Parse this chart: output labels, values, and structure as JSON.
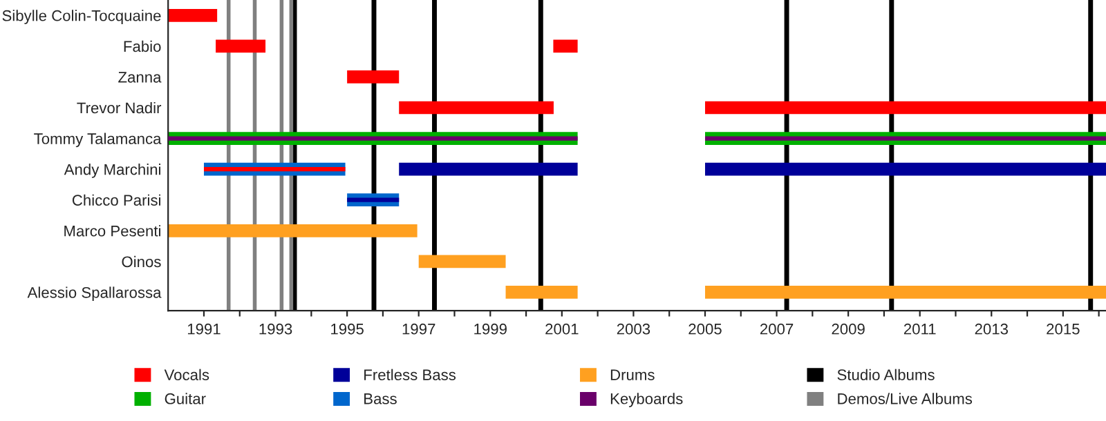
{
  "chart_data": {
    "type": "bar",
    "orientation": "horizontal",
    "legend": "bottom",
    "grid": false,
    "categories": [
      "Sibylle Colin-Tocquaine",
      "Fabio",
      "Zanna",
      "Trevor Nadir",
      "Tommy Talamanca",
      "Andy Marchini",
      "Chicco Parisi",
      "Marco Pesenti",
      "Oinos",
      "Alessio Spallarossa"
    ],
    "xlim": [
      1990,
      2016.2
    ],
    "xticks": [
      1991,
      {
        "value": 1992,
        "label": null
      },
      1993,
      {
        "value": 1994,
        "label": null
      },
      1995,
      {
        "value": 1996,
        "label": null
      },
      1997,
      {
        "value": 1998,
        "label": null
      },
      1999,
      {
        "value": 2000,
        "label": null
      },
      2001,
      {
        "value": 2002,
        "label": null
      },
      2003,
      {
        "value": 2004,
        "label": null
      },
      2005,
      {
        "value": 2006,
        "label": null
      },
      2007,
      {
        "value": 2008,
        "label": null
      },
      2009,
      {
        "value": 2010,
        "label": null
      },
      2011,
      {
        "value": 2012,
        "label": null
      },
      2013,
      {
        "value": 2014,
        "label": null
      },
      2015,
      {
        "value": 2016,
        "label": null
      }
    ],
    "series": [
      {
        "name": "Vocals",
        "color": "#ff0000",
        "base": [
          1990,
          1991.33,
          1995,
          1996.45,
          null,
          null,
          null,
          null,
          null,
          null
        ],
        "values": [
          1.37,
          1.39,
          1.45,
          4.32,
          null,
          null,
          null,
          null,
          null,
          null
        ]
      },
      {
        "color": "#ff0000",
        "base": [
          null,
          2000.76,
          null,
          2005,
          null,
          null,
          null,
          null,
          null,
          null
        ],
        "values": [
          null,
          0.68,
          null,
          11.2,
          null,
          null,
          null,
          null,
          null,
          null
        ]
      },
      {
        "name": "Guitar",
        "color": "#00b000",
        "base": [
          null,
          null,
          null,
          null,
          1990,
          null,
          null,
          null,
          null,
          null
        ],
        "values": [
          null,
          null,
          null,
          null,
          11.44,
          null,
          null,
          null,
          null,
          null
        ]
      },
      {
        "color": "#00b000",
        "base": [
          null,
          null,
          null,
          null,
          2005,
          null,
          null,
          null,
          null,
          null
        ],
        "values": [
          null,
          null,
          null,
          null,
          11.2,
          null,
          null,
          null,
          null,
          null
        ]
      },
      {
        "name": "Fretless Bass",
        "color": "#000099",
        "base": [
          null,
          null,
          null,
          null,
          null,
          1996.45,
          null,
          null,
          null,
          null
        ],
        "values": [
          null,
          null,
          null,
          null,
          null,
          4.99,
          null,
          null,
          null,
          null
        ]
      },
      {
        "color": "#000099",
        "base": [
          null,
          null,
          null,
          null,
          null,
          2005,
          null,
          null,
          null,
          null
        ],
        "values": [
          null,
          null,
          null,
          null,
          null,
          11.2,
          null,
          null,
          null,
          null
        ]
      },
      {
        "name": "Bass",
        "color": "#0066cc",
        "base": [
          null,
          null,
          null,
          null,
          null,
          1991,
          1995,
          null,
          null,
          null
        ],
        "values": [
          null,
          null,
          null,
          null,
          null,
          3.95,
          1.45,
          null,
          null,
          null
        ]
      },
      {
        "color": "#ff0000",
        "base": [
          null,
          null,
          null,
          null,
          null,
          1991,
          null,
          null,
          null,
          null
        ],
        "values": [
          null,
          null,
          null,
          null,
          null,
          3.95,
          null,
          null,
          null,
          null
        ]
      },
      {
        "color": "#000099",
        "base": [
          null,
          null,
          null,
          null,
          null,
          null,
          1995,
          null,
          null,
          null
        ],
        "values": [
          null,
          null,
          null,
          null,
          null,
          null,
          1.45,
          null,
          null,
          null
        ]
      },
      {
        "name": "Drums",
        "color": "#ffa020",
        "base": [
          null,
          null,
          null,
          null,
          null,
          null,
          null,
          1990,
          1997,
          1999.43
        ],
        "values": [
          null,
          null,
          null,
          null,
          null,
          null,
          null,
          6.96,
          2.43,
          2.01
        ]
      },
      {
        "color": "#ffa020",
        "base": [
          null,
          null,
          null,
          null,
          null,
          null,
          null,
          null,
          null,
          2005
        ],
        "values": [
          null,
          null,
          null,
          null,
          null,
          null,
          null,
          null,
          null,
          11.2
        ]
      },
      {
        "name": "Keyboards",
        "color": "#6a006a",
        "base": [
          null,
          null,
          null,
          null,
          1990,
          null,
          null,
          null,
          null,
          null
        ],
        "values": [
          null,
          null,
          null,
          null,
          11.44,
          null,
          null,
          null,
          null,
          null
        ]
      },
      {
        "color": "#6a006a",
        "base": [
          null,
          null,
          null,
          null,
          2005,
          null,
          null,
          null,
          null,
          null
        ],
        "values": [
          null,
          null,
          null,
          null,
          11.2,
          null,
          null,
          null,
          null,
          null
        ]
      }
    ],
    "ref_lines": [
      {
        "axis": "x",
        "value": 1993.53,
        "label": "Studio Albums",
        "color": "#000000"
      },
      {
        "axis": "x",
        "value": 1995.75,
        "color": "#000000"
      },
      {
        "axis": "x",
        "value": 1997.44,
        "color": "#000000"
      },
      {
        "axis": "x",
        "value": 2000.41,
        "color": "#000000"
      },
      {
        "axis": "x",
        "value": 2007.28,
        "color": "#000000"
      },
      {
        "axis": "x",
        "value": 2010.21,
        "color": "#000000"
      },
      {
        "axis": "x",
        "value": 2015.77,
        "color": "#000000"
      },
      {
        "axis": "x",
        "value": 1991.69,
        "label": "Demos/Live Albums",
        "color": "#808080"
      },
      {
        "axis": "x",
        "value": 1992.42,
        "color": "#808080"
      },
      {
        "axis": "x",
        "value": 1993.17,
        "color": "#808080"
      },
      {
        "axis": "x",
        "value": 1993.44,
        "color": "#808080"
      }
    ]
  }
}
